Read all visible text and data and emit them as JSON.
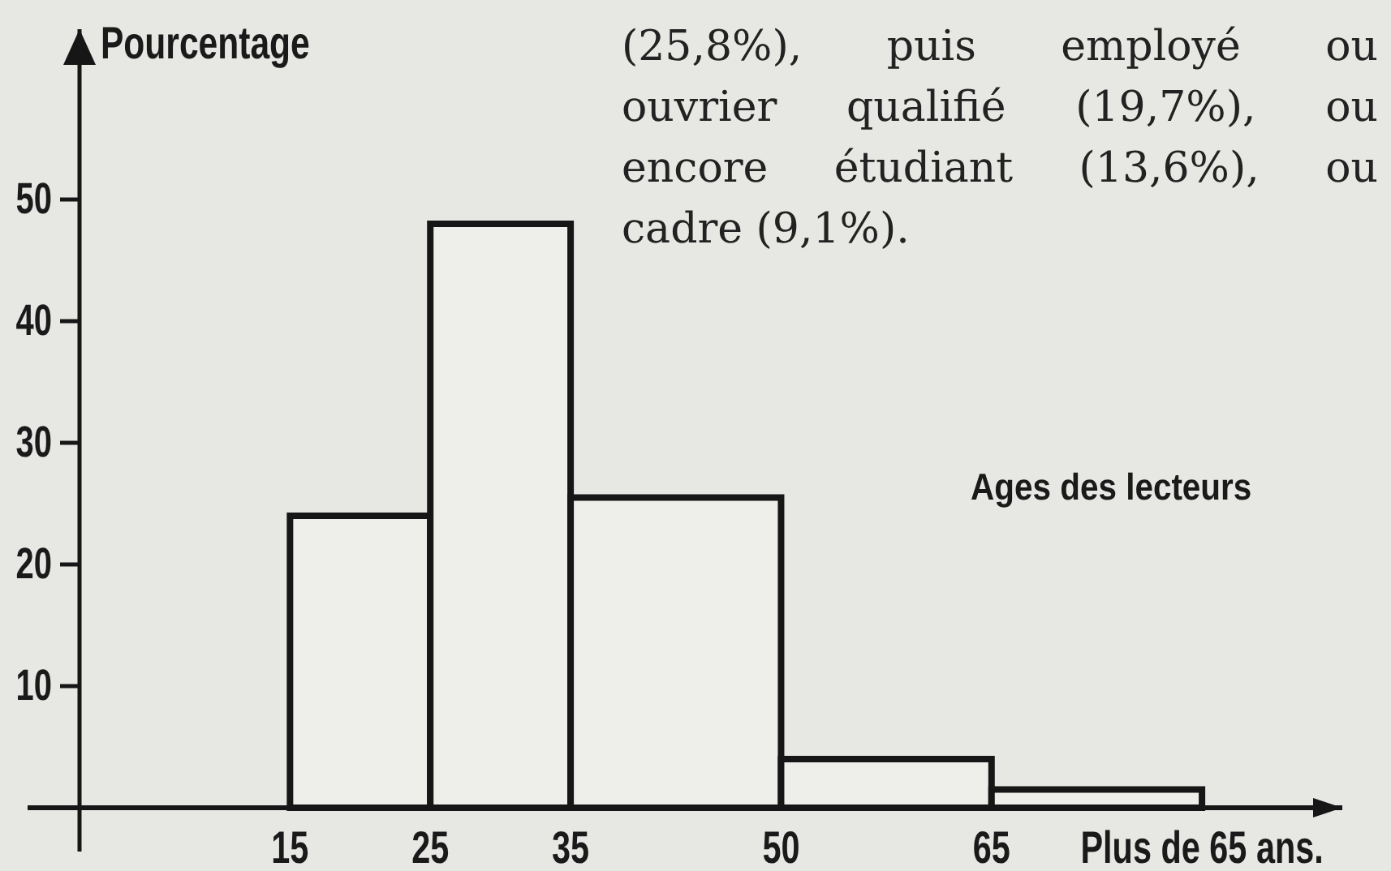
{
  "chart_data": {
    "type": "histogram",
    "title": "Ages des lecteurs",
    "ylabel": "Pourcentage",
    "annotations": [
      "(25,8%), puis employé ou\nouvrier qualifié (19,7%), ou\nencore étudiant (13,6%), ou\ncadre (9,1%)."
    ],
    "bins": [
      15,
      25,
      35,
      50,
      65,
      80
    ],
    "values": [
      24,
      48,
      25.5,
      4,
      1.5
    ],
    "color": "#eeeeeb",
    "xlim": [
      0,
      90
    ],
    "xticks": [
      15,
      25,
      35,
      50,
      65,
      {
        "value": 80,
        "label": "Plus de 65 ans."
      }
    ],
    "ylim": [
      0,
      64
    ],
    "yticks": [
      10,
      20,
      30,
      40,
      50
    ]
  }
}
